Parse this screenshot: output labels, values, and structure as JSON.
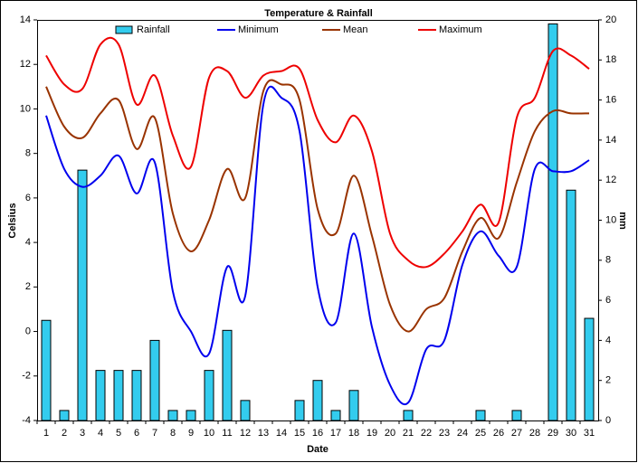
{
  "chart_data": {
    "type": "combo",
    "title": "Temperature & Rainfall",
    "x_label": "Date",
    "y_label": "Celsius",
    "y2_label": "mm",
    "categories": [
      "1",
      "2",
      "3",
      "4",
      "5",
      "6",
      "7",
      "8",
      "9",
      "10",
      "11",
      "12",
      "13",
      "14",
      "15",
      "16",
      "17",
      "18",
      "19",
      "20",
      "21",
      "22",
      "23",
      "24",
      "25",
      "26",
      "27",
      "28",
      "29",
      "30",
      "31"
    ],
    "ylim": [
      -4,
      14
    ],
    "yticks": [
      -4,
      -2,
      0,
      2,
      4,
      6,
      8,
      10,
      12,
      14
    ],
    "y2lim": [
      0,
      20
    ],
    "y2ticks": [
      0,
      2,
      4,
      6,
      8,
      10,
      12,
      14,
      16,
      18,
      20
    ],
    "series": [
      {
        "name": "Rainfall",
        "type": "bar",
        "axis": "y2",
        "color": "#33ccee",
        "values": [
          5.0,
          0.5,
          12.5,
          2.5,
          2.5,
          2.5,
          4.0,
          0.5,
          0.5,
          2.5,
          4.5,
          1.0,
          0,
          0,
          1.0,
          2.0,
          0.5,
          1.5,
          0,
          0,
          0.5,
          0,
          0,
          0,
          0.5,
          0,
          0.5,
          0,
          19.8,
          11.5,
          5.1
        ]
      },
      {
        "name": "Minimum",
        "type": "line",
        "color": "#0000ee",
        "values": [
          9.7,
          7.3,
          6.5,
          7.0,
          7.9,
          6.2,
          7.6,
          1.8,
          0.0,
          -1.0,
          2.9,
          1.6,
          10.2,
          10.5,
          9.0,
          2.0,
          0.4,
          4.4,
          0.2,
          -2.4,
          -3.2,
          -0.8,
          -0.4,
          3.0,
          4.5,
          3.4,
          2.9,
          7.3,
          7.2,
          7.2,
          7.7
        ]
      },
      {
        "name": "Mean",
        "type": "line",
        "color": "#993300",
        "values": [
          11.0,
          9.2,
          8.7,
          9.8,
          10.4,
          8.2,
          9.6,
          5.3,
          3.6,
          5.0,
          7.3,
          6.0,
          10.8,
          11.1,
          10.4,
          5.5,
          4.4,
          7.0,
          4.3,
          1.2,
          0.0,
          1.0,
          1.5,
          3.6,
          5.1,
          4.2,
          6.7,
          9.0,
          9.9,
          9.8,
          9.8
        ]
      },
      {
        "name": "Maximum",
        "type": "line",
        "color": "#ee0000",
        "values": [
          12.4,
          11.1,
          10.9,
          12.9,
          12.9,
          10.2,
          11.5,
          8.8,
          7.4,
          11.4,
          11.7,
          10.5,
          11.5,
          11.7,
          11.8,
          9.5,
          8.5,
          9.7,
          8.1,
          4.4,
          3.2,
          2.9,
          3.5,
          4.5,
          5.7,
          4.9,
          9.6,
          10.5,
          12.6,
          12.4,
          11.8
        ]
      }
    ]
  }
}
